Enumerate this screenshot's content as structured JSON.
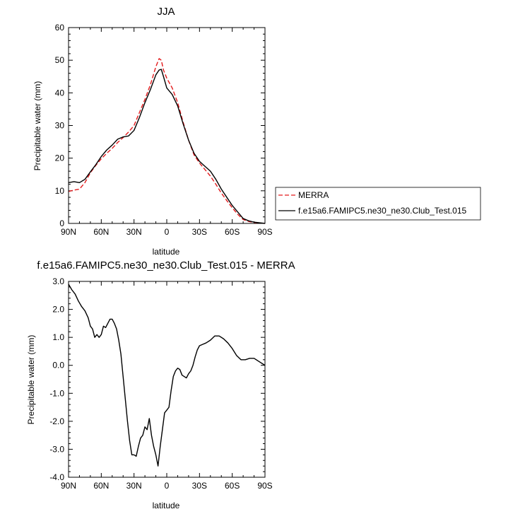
{
  "chart_data": [
    {
      "type": "line",
      "title": "JJA",
      "xlabel": "latitude",
      "ylabel": "Precipitable water (mm)",
      "xlim": [
        90,
        -90
      ],
      "ylim": [
        0,
        60
      ],
      "x_ticks": [
        90,
        60,
        30,
        0,
        -30,
        -60,
        -90
      ],
      "x_tick_labels": [
        "90N",
        "60N",
        "30N",
        "0",
        "30S",
        "60S",
        "90S"
      ],
      "y_ticks": [
        0,
        10,
        20,
        30,
        40,
        50,
        60
      ],
      "y_tick_labels": [
        "0",
        "10",
        "20",
        "30",
        "40",
        "50",
        "60"
      ],
      "legend_position": "right, outside",
      "series": [
        {
          "name": "MERRA",
          "color": "#e31a1c",
          "dash": "dashed",
          "x": [
            90,
            85,
            80,
            75,
            70,
            65,
            60,
            55,
            50,
            45,
            40,
            35,
            30,
            25,
            20,
            15,
            10,
            7,
            5,
            3,
            0,
            -5,
            -10,
            -15,
            -20,
            -25,
            -30,
            -35,
            -40,
            -45,
            -50,
            -55,
            -60,
            -65,
            -70,
            -75,
            -80,
            -85,
            -90
          ],
          "values": [
            9.8,
            10.2,
            10.5,
            12.5,
            15.5,
            17.8,
            19.8,
            21.5,
            23.0,
            24.8,
            26.3,
            28.0,
            30.0,
            34.0,
            38.0,
            42.5,
            48.0,
            50.5,
            50.0,
            47.0,
            44.5,
            41.5,
            37.0,
            31.0,
            25.5,
            21.0,
            18.5,
            16.5,
            14.5,
            12.0,
            9.3,
            7.0,
            4.8,
            2.8,
            1.2,
            0.6,
            0.3,
            0.1,
            0.0
          ]
        },
        {
          "name": "f.e15a6.FAMIPC5.ne30_ne30.Club_Test.015",
          "color": "#000000",
          "dash": "solid",
          "x": [
            90,
            85,
            80,
            75,
            70,
            65,
            60,
            55,
            50,
            45,
            40,
            35,
            30,
            25,
            20,
            15,
            10,
            7,
            5,
            3,
            0,
            -5,
            -10,
            -15,
            -20,
            -25,
            -30,
            -35,
            -40,
            -45,
            -50,
            -55,
            -60,
            -65,
            -70,
            -75,
            -80,
            -85,
            -90
          ],
          "values": [
            12.5,
            12.8,
            12.5,
            13.5,
            15.8,
            18.0,
            20.5,
            22.5,
            24.0,
            25.8,
            26.5,
            26.8,
            28.5,
            32.5,
            37.0,
            41.0,
            45.5,
            47.0,
            47.2,
            45.0,
            41.5,
            39.5,
            36.0,
            30.5,
            25.5,
            21.5,
            19.0,
            17.5,
            16.0,
            13.5,
            10.5,
            8.0,
            5.5,
            3.5,
            1.5,
            0.8,
            0.4,
            0.2,
            0.0
          ]
        }
      ]
    },
    {
      "type": "line",
      "title": "f.e15a6.FAMIPC5.ne30_ne30.Club_Test.015 - MERRA",
      "xlabel": "latitude",
      "ylabel": "Precipitable water (mm)",
      "xlim": [
        90,
        -90
      ],
      "ylim": [
        -4.0,
        3.0
      ],
      "x_ticks": [
        90,
        60,
        30,
        0,
        -30,
        -60,
        -90
      ],
      "x_tick_labels": [
        "90N",
        "60N",
        "30N",
        "0",
        "30S",
        "60S",
        "90S"
      ],
      "y_ticks": [
        -4,
        -3,
        -2,
        -1,
        0,
        1,
        2,
        3
      ],
      "y_tick_labels": [
        "-4.0",
        "-3.0",
        "-2.0",
        "-1.0",
        "0.0",
        "1.0",
        "2.0",
        "3.0"
      ],
      "series": [
        {
          "color": "#000000",
          "dash": "solid",
          "x": [
            90,
            87,
            84,
            81,
            78,
            75,
            72,
            70,
            68,
            66,
            64,
            62,
            60,
            58,
            56,
            54,
            52,
            50,
            48,
            46,
            44,
            42,
            40,
            38,
            36,
            34,
            32,
            30,
            28,
            26,
            24,
            22,
            20,
            18,
            16,
            14,
            12,
            10,
            8,
            6,
            4,
            2,
            0,
            -2,
            -4,
            -6,
            -8,
            -10,
            -12,
            -14,
            -16,
            -18,
            -20,
            -22,
            -24,
            -26,
            -28,
            -30,
            -33,
            -36,
            -40,
            -44,
            -48,
            -52,
            -56,
            -60,
            -64,
            -68,
            -72,
            -76,
            -80,
            -84,
            -88,
            -90
          ],
          "values": [
            2.9,
            2.7,
            2.55,
            2.3,
            2.1,
            1.95,
            1.7,
            1.4,
            1.3,
            1.0,
            1.1,
            1.0,
            1.1,
            1.4,
            1.35,
            1.5,
            1.65,
            1.65,
            1.5,
            1.3,
            0.9,
            0.4,
            -0.4,
            -1.2,
            -2.0,
            -2.7,
            -3.2,
            -3.2,
            -3.25,
            -2.9,
            -2.6,
            -2.5,
            -2.2,
            -2.3,
            -1.9,
            -2.5,
            -2.9,
            -3.2,
            -3.6,
            -2.9,
            -2.3,
            -1.7,
            -1.6,
            -1.5,
            -0.9,
            -0.4,
            -0.2,
            -0.1,
            -0.15,
            -0.35,
            -0.4,
            -0.45,
            -0.3,
            -0.2,
            0.0,
            0.3,
            0.55,
            0.7,
            0.75,
            0.8,
            0.9,
            1.05,
            1.05,
            0.95,
            0.8,
            0.6,
            0.35,
            0.2,
            0.2,
            0.25,
            0.25,
            0.15,
            0.05,
            0.0
          ]
        }
      ]
    }
  ]
}
